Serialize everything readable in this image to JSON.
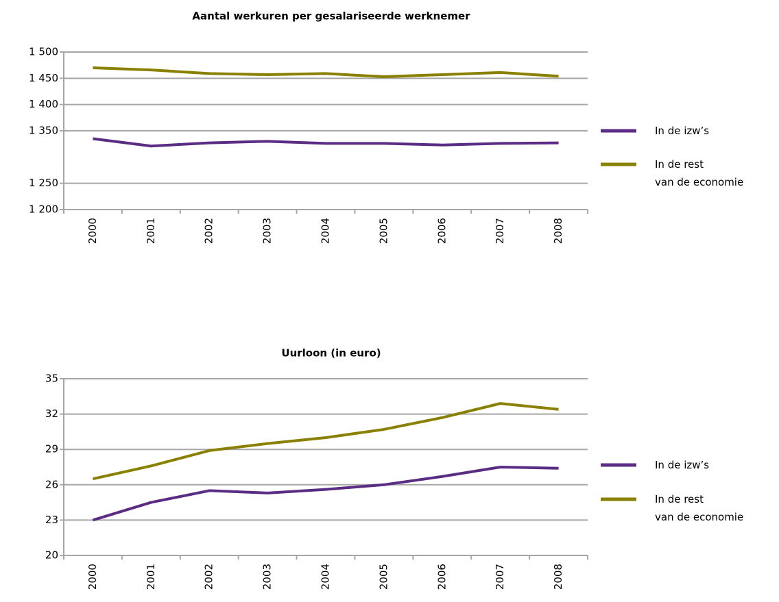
{
  "chart_data": [
    {
      "type": "line",
      "title": "Aantal werkuren per gesalariseerde werknemer",
      "categories": [
        "2000",
        "2001",
        "2002",
        "2003",
        "2004",
        "2005",
        "2006",
        "2007",
        "2008"
      ],
      "series": [
        {
          "name": "In de izw’s",
          "color": "#5b2c83",
          "values": [
            1335,
            1321,
            1327,
            1330,
            1326,
            1326,
            1323,
            1326,
            1327
          ]
        },
        {
          "name": "In de rest\nvan de economie",
          "color": "#8a8000",
          "values": [
            1470,
            1466,
            1459,
            1457,
            1459,
            1453,
            1457,
            1461,
            1454
          ]
        }
      ],
      "ylim": [
        1200,
        1500
      ],
      "yticks": [
        {
          "value": 1200,
          "label": "1 200"
        },
        {
          "value": 1250,
          "label": "1 250"
        },
        {
          "value": 1350,
          "label": "1 350"
        },
        {
          "value": 1400,
          "label": "1 400"
        },
        {
          "value": 1450,
          "label": "1 450"
        },
        {
          "value": 1500,
          "label": "1 500"
        }
      ],
      "grid": true,
      "legend": "right"
    },
    {
      "type": "line",
      "title": "Uurloon (in euro)",
      "categories": [
        "2000",
        "2001",
        "2002",
        "2003",
        "2004",
        "2005",
        "2006",
        "2007",
        "2008"
      ],
      "series": [
        {
          "name": "In de izw’s",
          "color": "#5b2c83",
          "values": [
            23.0,
            24.5,
            25.5,
            25.3,
            25.6,
            26.0,
            26.7,
            27.5,
            27.4
          ]
        },
        {
          "name": "In de rest\nvan de economie",
          "color": "#8a8000",
          "values": [
            26.5,
            27.6,
            28.9,
            29.5,
            30.0,
            30.7,
            31.7,
            32.9,
            32.4
          ]
        }
      ],
      "ylim": [
        20,
        35
      ],
      "yticks": [
        20,
        23,
        26,
        29,
        32,
        35
      ],
      "grid": true,
      "legend": "right"
    }
  ]
}
